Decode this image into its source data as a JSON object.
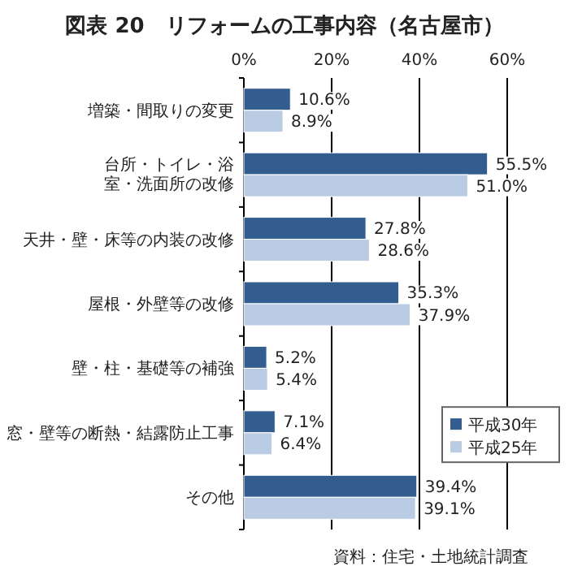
{
  "chart_data": {
    "type": "bar",
    "orientation": "horizontal",
    "title": "図表 20　リフォームの工事内容（名古屋市）",
    "categories": [
      "増築・間取りの変更",
      "台所・トイレ・浴室・洗面所の改修",
      "天井・壁・床等の内装の改修",
      "屋根・外壁等の改修",
      "壁・柱・基礎等の補強",
      "窓・壁等の断熱・結露防止工事",
      "その他"
    ],
    "series": [
      {
        "name": "平成30年",
        "color": "#335d8f",
        "values": [
          10.6,
          55.5,
          27.8,
          35.3,
          5.2,
          7.1,
          39.4
        ],
        "value_labels": [
          "10.6%",
          "55.5%",
          "27.8%",
          "35.3%",
          "5.2%",
          "7.1%",
          "39.4%"
        ]
      },
      {
        "name": "平成25年",
        "color": "#b9cce4",
        "values": [
          8.9,
          51.0,
          28.6,
          37.9,
          5.4,
          6.4,
          39.1
        ],
        "value_labels": [
          "8.9%",
          "51.0%",
          "28.6%",
          "37.9%",
          "5.4%",
          "6.4%",
          "39.1%"
        ]
      }
    ],
    "xlim": [
      0,
      60
    ],
    "xticks": [
      {
        "value": 0,
        "label": "0%"
      },
      {
        "value": 20,
        "label": "20%"
      },
      {
        "value": 40,
        "label": "40%"
      },
      {
        "value": 60,
        "label": "60%"
      }
    ],
    "grid": "x",
    "legend": "bottom right",
    "annotations": [
      "資料：住宅・土地統計調査"
    ]
  }
}
